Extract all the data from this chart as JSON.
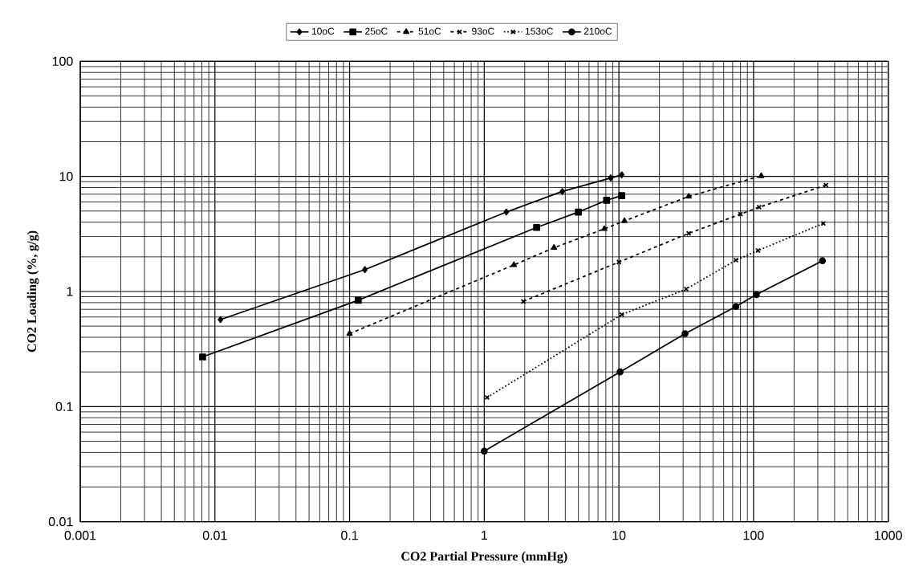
{
  "chart_data": {
    "type": "line",
    "xlabel": "CO2 Partial Pressure (mmHg)",
    "ylabel": "CO2 Loading (%, g/g)",
    "log": "xy",
    "grid": true,
    "legend": "top",
    "xlim": [
      0.001,
      1000
    ],
    "ylim": [
      0.01,
      100
    ],
    "xticks": [
      0.001,
      0.01,
      0.1,
      1,
      10,
      100,
      1000
    ],
    "yticks": [
      0.01,
      0.1,
      1,
      10,
      100
    ],
    "series": [
      {
        "name": "10oC",
        "color": "#000000",
        "marker": "diamond",
        "line_style": "solid",
        "x": [
          0.011,
          0.13,
          1.46,
          3.8,
          8.7,
          10.5
        ],
        "values": [
          0.57,
          1.55,
          4.9,
          7.4,
          9.7,
          10.3
        ]
      },
      {
        "name": "25oC",
        "color": "#000000",
        "marker": "square",
        "line_style": "solid",
        "x": [
          0.0081,
          0.116,
          2.45,
          5,
          8.1,
          10.5
        ],
        "values": [
          0.27,
          0.84,
          3.6,
          4.9,
          6.2,
          6.8
        ]
      },
      {
        "name": "51oC",
        "color": "#000000",
        "marker": "triangle",
        "line_style": "dashed",
        "x": [
          0.1,
          1.66,
          3.3,
          7.8,
          11,
          33,
          114
        ],
        "values": [
          0.43,
          1.7,
          2.4,
          3.5,
          4.1,
          6.7,
          10.1
        ]
      },
      {
        "name": "93oC",
        "color": "#000000",
        "marker": "cross",
        "line_style": "dashed",
        "x": [
          1.95,
          10,
          33,
          80,
          110,
          345
        ],
        "values": [
          0.82,
          1.8,
          3.2,
          4.7,
          5.4,
          8.4
        ]
      },
      {
        "name": "153oC",
        "color": "#000000",
        "marker": "cross",
        "line_style": "dotted",
        "x": [
          1.05,
          10.5,
          31.6,
          74,
          108,
          330
        ],
        "values": [
          0.12,
          0.63,
          1.05,
          1.87,
          2.27,
          3.9
        ]
      },
      {
        "name": "210oC",
        "color": "#000000",
        "marker": "circle",
        "line_style": "solid",
        "x": [
          1,
          10.2,
          31,
          74,
          105,
          325
        ],
        "values": [
          0.041,
          0.2,
          0.43,
          0.74,
          0.94,
          1.85
        ]
      }
    ]
  }
}
